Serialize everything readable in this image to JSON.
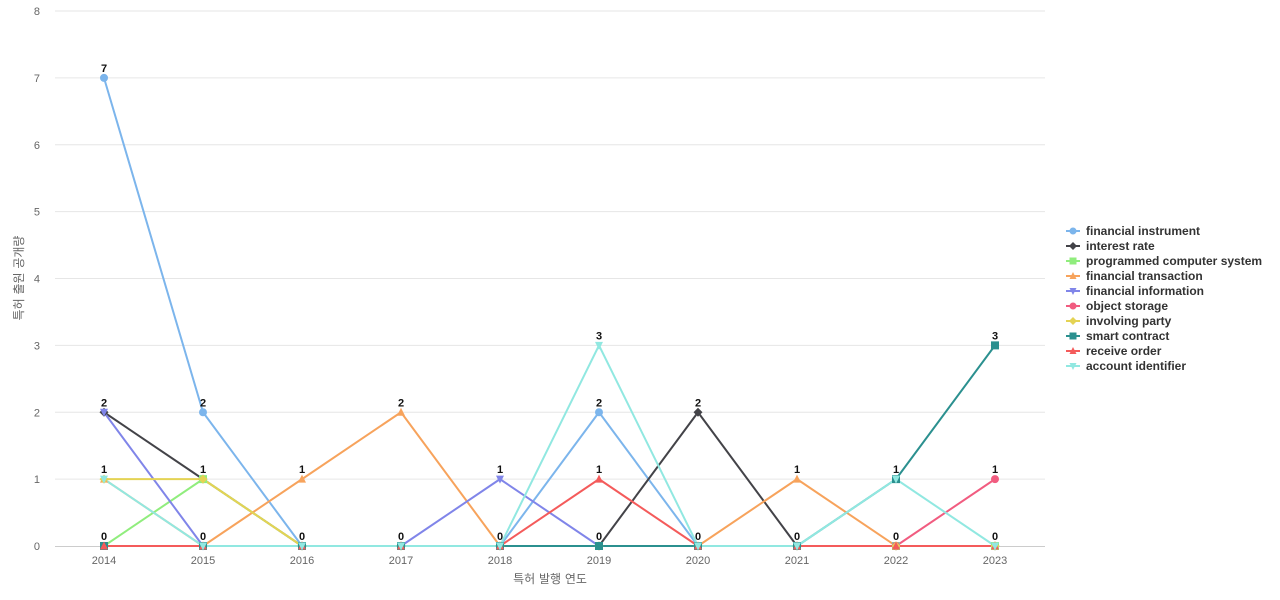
{
  "chart_data": {
    "type": "line",
    "title": "",
    "xlabel": "특허 발행 연도",
    "ylabel": "특허 출원 공개량",
    "x": [
      "2014",
      "2015",
      "2016",
      "2017",
      "2018",
      "2019",
      "2020",
      "2021",
      "2022",
      "2023"
    ],
    "ylim": [
      0,
      8
    ],
    "yticks": [
      0,
      1,
      2,
      3,
      4,
      5,
      6,
      7,
      8
    ],
    "grid": true,
    "legend_position": "right",
    "series": [
      {
        "name": "financial instrument",
        "color": "#7cb5ec",
        "marker": "circle",
        "values": [
          7,
          2,
          0,
          0,
          0,
          2,
          0,
          0,
          0,
          0
        ]
      },
      {
        "name": "interest rate",
        "color": "#434348",
        "marker": "diamond",
        "values": [
          2,
          1,
          0,
          0,
          0,
          0,
          2,
          0,
          0,
          0
        ]
      },
      {
        "name": "programmed computer system",
        "color": "#90ed7d",
        "marker": "square",
        "values": [
          0,
          1,
          0,
          0,
          0,
          0,
          0,
          0,
          0,
          0
        ]
      },
      {
        "name": "financial transaction",
        "color": "#f7a35c",
        "marker": "triangle",
        "values": [
          1,
          0,
          1,
          2,
          0,
          0,
          0,
          1,
          0,
          0
        ]
      },
      {
        "name": "financial information",
        "color": "#8085e9",
        "marker": "triangle-down",
        "values": [
          2,
          0,
          0,
          0,
          1,
          0,
          0,
          0,
          0,
          0
        ]
      },
      {
        "name": "object storage",
        "color": "#f15c80",
        "marker": "circle",
        "values": [
          0,
          0,
          0,
          0,
          0,
          0,
          0,
          0,
          0,
          1
        ]
      },
      {
        "name": "involving party",
        "color": "#e4d354",
        "marker": "diamond",
        "values": [
          1,
          1,
          0,
          0,
          0,
          0,
          0,
          0,
          0,
          0
        ]
      },
      {
        "name": "smart contract",
        "color": "#2b908f",
        "marker": "square",
        "values": [
          0,
          0,
          0,
          0,
          0,
          0,
          0,
          0,
          1,
          3
        ]
      },
      {
        "name": "receive order",
        "color": "#f45b5b",
        "marker": "triangle",
        "values": [
          0,
          0,
          0,
          0,
          0,
          1,
          0,
          0,
          0,
          0
        ]
      },
      {
        "name": "account identifier",
        "color": "#91e8e1",
        "marker": "triangle-down",
        "values": [
          1,
          0,
          0,
          0,
          0,
          3,
          0,
          0,
          1,
          0
        ]
      }
    ],
    "point_labels": [
      {
        "x": "2014",
        "series": "financial instrument"
      },
      {
        "x": "2014",
        "series": "interest rate"
      },
      {
        "x": "2014",
        "series": "financial transaction"
      },
      {
        "x": "2014",
        "series": "smart contract"
      },
      {
        "x": "2015",
        "series": "financial instrument"
      },
      {
        "x": "2015",
        "series": "interest rate"
      },
      {
        "x": "2015",
        "series": "financial transaction"
      },
      {
        "x": "2016",
        "series": "financial transaction"
      },
      {
        "x": "2016",
        "series": "financial instrument"
      },
      {
        "x": "2017",
        "series": "financial transaction"
      },
      {
        "x": "2017",
        "series": "financial instrument"
      },
      {
        "x": "2018",
        "series": "financial information"
      },
      {
        "x": "2018",
        "series": "financial instrument"
      },
      {
        "x": "2019",
        "series": "account identifier"
      },
      {
        "x": "2019",
        "series": "financial instrument"
      },
      {
        "x": "2019",
        "series": "receive order"
      },
      {
        "x": "2019",
        "series": "smart contract"
      },
      {
        "x": "2020",
        "series": "interest rate"
      },
      {
        "x": "2020",
        "series": "financial instrument"
      },
      {
        "x": "2021",
        "series": "financial transaction"
      },
      {
        "x": "2021",
        "series": "financial instrument"
      },
      {
        "x": "2022",
        "series": "smart contract"
      },
      {
        "x": "2022",
        "series": "financial instrument"
      },
      {
        "x": "2023",
        "series": "smart contract"
      },
      {
        "x": "2023",
        "series": "object storage"
      },
      {
        "x": "2023",
        "series": "financial instrument"
      }
    ]
  }
}
